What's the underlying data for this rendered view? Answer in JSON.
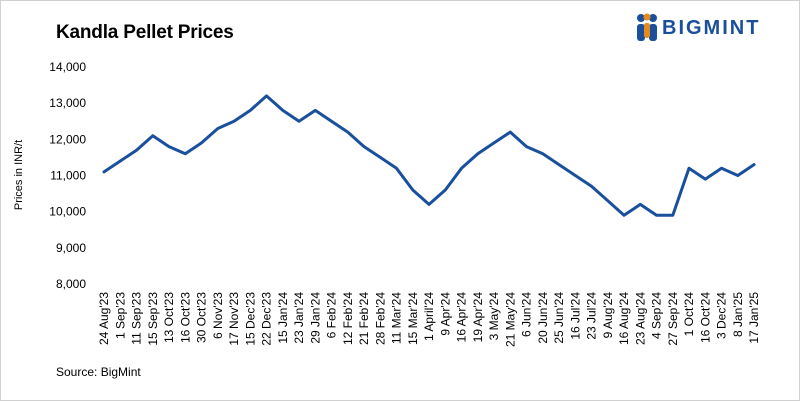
{
  "chart_data": {
    "type": "line",
    "title": "Kandla Pellet Prices",
    "xlabel": "",
    "ylabel": "Prices in INR/t",
    "ylim": [
      8000,
      14000
    ],
    "yticks": [
      "8,000",
      "9,000",
      "10,000",
      "11,000",
      "12,000",
      "13,000",
      "14,000"
    ],
    "grid": false,
    "legend": "none",
    "categories": [
      "24 Aug'23",
      "1 Sep'23",
      "11 Sep'23",
      "15 Sep'23",
      "13 Oct'23",
      "16 Oct'23",
      "30 Oct'23",
      "6 Nov'23",
      "17 Nov'23",
      "15 Dec'23",
      "22 Dec'23",
      "15 Jan'24",
      "23 Jan'24",
      "29 Jan'24",
      "6 Feb'24",
      "12 Feb'24",
      "21 Feb'24",
      "28 Feb'24",
      "11 Mar'24",
      "15 Mar'24",
      "1 April'24",
      "9 Apr'24",
      "16 Apr'24",
      "19 Apr'24",
      "3 May'24",
      "21 May'24",
      "6 Jun'24",
      "20 Jun'24",
      "25 Jun'24",
      "16 Jul'24",
      "23 Jul'24",
      "9 Aug'24",
      "16 Aug'24",
      "23 Aug'24",
      "4 Sep'24",
      "27 Sep'24",
      "1 Oct'24",
      "16 Oct'24",
      "3 Dec'24",
      "8 Jan'25",
      "17 Jan'25"
    ],
    "series": [
      {
        "values": [
          11100,
          11400,
          11700,
          12100,
          11800,
          11600,
          11900,
          12300,
          12500,
          12800,
          13200,
          12800,
          12500,
          12800,
          12500,
          12200,
          11800,
          11500,
          11200,
          10600,
          10200,
          10600,
          11200,
          11600,
          11900,
          12200,
          11800,
          11600,
          11300,
          11000,
          10700,
          10300,
          9900,
          10200,
          9900,
          9900,
          11200,
          10900,
          11200,
          11000,
          11300
        ]
      }
    ],
    "line_color": "#1a4f9c"
  },
  "source": "Source: BigMint",
  "logo": {
    "text": "BIGMINT",
    "color": "#1b4f9c"
  }
}
